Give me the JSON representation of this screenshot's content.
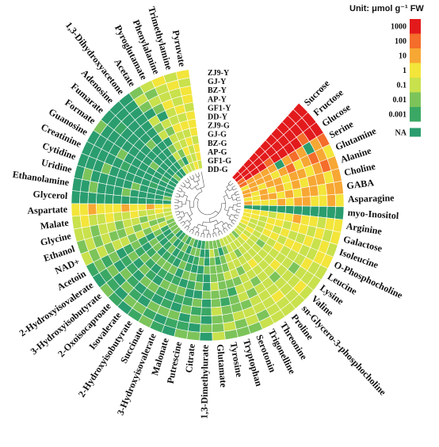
{
  "chart_data": {
    "type": "heatmap",
    "layout": "circular",
    "legend": {
      "title": "Unit: μmol g⁻¹ FW",
      "ticks": [
        "1000",
        "100",
        "10",
        "1",
        "0.1",
        "0.01",
        "0.001"
      ],
      "colors": [
        "#e31a1c",
        "#f46d2a",
        "#f7a733",
        "#f3e53a",
        "#c9e14c",
        "#7cc45a",
        "#3aa864"
      ],
      "na_label": "NA",
      "na_color": "#2a9d6e",
      "placement": "top-right"
    },
    "samples": [
      "ZJ9-Y",
      "GJ-Y",
      "BZ-Y",
      "AP-Y",
      "GF1-Y",
      "DD-Y",
      "ZJ9-G",
      "GJ-G",
      "BZ-G",
      "AP-G",
      "GF1-G",
      "DD-G"
    ],
    "metabolites": [
      "Sucrose",
      "Fructose",
      "Glucose",
      "Serine",
      "Glutamine",
      "Alanine",
      "Choline",
      "GABA",
      "Asparagine",
      "myo-Inositol",
      "Arginine",
      "Galactose",
      "Isoleucine",
      "O-Phosphocholine",
      "Leucine",
      "Lysine",
      "Valine",
      "sn-Glycero-3-phosphocholine",
      "Proline",
      "Threonine",
      "Trigonelline",
      "Serotonin",
      "Tryptophan",
      "Tyrosine",
      "Glutamate",
      "1,3-Dimethylurate",
      "Citrate",
      "Putrescine",
      "Malonate",
      "3-Hydroxyisovalerate",
      "Succinate",
      "2-Hydroxyisobutyrate",
      "Isovalerate",
      "2-Oxoisocaproate",
      "3-Hydroxyisobutyrate",
      "2-Hydroxyisovalerate",
      "Acetoin",
      "NAD+",
      "Ethanol",
      "Glycine",
      "Malate",
      "Aspartate",
      "Glycerol",
      "Ethanolamine",
      "Uridine",
      "Cytidine",
      "Creatinine",
      "Guanosine",
      "Formate",
      "Fumarate",
      "Adenosine",
      "1,3-Dihydroxyacetone",
      "Acetate",
      "Pyroglutamate",
      "Phenylalanine",
      "Trimethylamine",
      "Pyruvate"
    ],
    "levels_note": "level index: 0=1000,1=100,2=10,3=1,4=0.1,5=0.01,6=0.001,-1=NA; each row lists samples ZJ9-Y..DD-G",
    "levels": [
      [
        0,
        0,
        0,
        0,
        0,
        0,
        0,
        0,
        0,
        0,
        0,
        0
      ],
      [
        0,
        0,
        0,
        0,
        0,
        0,
        0,
        0,
        0,
        0,
        0,
        0
      ],
      [
        0,
        0,
        1,
        0,
        0,
        0,
        0,
        1,
        0,
        0,
        0,
        1
      ],
      [
        1,
        2,
        -1,
        2,
        1,
        2,
        -1,
        2,
        2,
        2,
        2,
        1
      ],
      [
        3,
        2,
        1,
        2,
        3,
        1,
        2,
        3,
        2,
        2,
        2,
        3
      ],
      [
        2,
        1,
        2,
        3,
        2,
        2,
        3,
        2,
        2,
        3,
        2,
        2
      ],
      [
        2,
        3,
        2,
        2,
        3,
        2,
        3,
        2,
        3,
        2,
        3,
        2
      ],
      [
        2,
        2,
        3,
        2,
        2,
        3,
        2,
        3,
        2,
        2,
        3,
        3
      ],
      [
        3,
        2,
        3,
        3,
        2,
        2,
        3,
        2,
        3,
        3,
        3,
        2
      ],
      [
        -1,
        -1,
        -1,
        -1,
        -1,
        -1,
        -1,
        -1,
        -1,
        -1,
        -1,
        -1
      ],
      [
        3,
        3,
        4,
        3,
        3,
        2,
        3,
        3,
        4,
        3,
        3,
        3
      ],
      [
        3,
        4,
        3,
        4,
        3,
        3,
        4,
        3,
        3,
        4,
        3,
        3
      ],
      [
        4,
        3,
        4,
        3,
        4,
        4,
        3,
        4,
        3,
        4,
        4,
        3
      ],
      [
        3,
        3,
        4,
        4,
        3,
        3,
        4,
        3,
        3,
        4,
        4,
        3
      ],
      [
        4,
        4,
        3,
        4,
        4,
        4,
        3,
        4,
        4,
        4,
        3,
        4
      ],
      [
        4,
        4,
        4,
        5,
        4,
        4,
        4,
        4,
        5,
        4,
        4,
        4
      ],
      [
        4,
        3,
        4,
        4,
        4,
        3,
        4,
        4,
        4,
        4,
        3,
        4
      ],
      [
        4,
        4,
        4,
        4,
        5,
        4,
        4,
        4,
        4,
        4,
        4,
        5
      ],
      [
        4,
        4,
        3,
        4,
        4,
        4,
        4,
        3,
        4,
        4,
        4,
        4
      ],
      [
        4,
        4,
        4,
        4,
        4,
        5,
        4,
        4,
        4,
        5,
        4,
        4
      ],
      [
        4,
        5,
        4,
        4,
        5,
        4,
        4,
        5,
        4,
        4,
        4,
        4
      ],
      [
        5,
        4,
        4,
        5,
        4,
        4,
        5,
        4,
        4,
        4,
        5,
        4
      ],
      [
        5,
        5,
        4,
        5,
        5,
        6,
        5,
        4,
        5,
        5,
        -1,
        5
      ],
      [
        5,
        4,
        5,
        5,
        6,
        5,
        5,
        5,
        5,
        6,
        5,
        5
      ],
      [
        4,
        5,
        5,
        4,
        5,
        5,
        4,
        5,
        5,
        5,
        4,
        5
      ],
      [
        -1,
        5,
        -1,
        6,
        -1,
        5,
        -1,
        -1,
        5,
        -1,
        -1,
        5
      ],
      [
        5,
        -1,
        5,
        6,
        5,
        -1,
        5,
        6,
        -1,
        5,
        -1,
        6
      ],
      [
        5,
        6,
        -1,
        5,
        6,
        -1,
        6,
        5,
        -1,
        6,
        5,
        -1
      ],
      [
        -1,
        6,
        5,
        -1,
        6,
        5,
        -1,
        5,
        6,
        -1,
        5,
        6
      ],
      [
        6,
        -1,
        5,
        6,
        -1,
        5,
        6,
        -1,
        5,
        6,
        -1,
        5
      ],
      [
        5,
        6,
        5,
        -1,
        6,
        5,
        6,
        5,
        -1,
        6,
        5,
        6
      ],
      [
        6,
        5,
        -1,
        6,
        5,
        -1,
        6,
        5,
        6,
        -1,
        6,
        5
      ],
      [
        -1,
        5,
        6,
        -1,
        5,
        6,
        -1,
        5,
        6,
        5,
        -1,
        6
      ],
      [
        6,
        -1,
        5,
        6,
        -1,
        5,
        6,
        5,
        -1,
        6,
        5,
        -1
      ],
      [
        5,
        6,
        -1,
        5,
        6,
        -1,
        5,
        6,
        5,
        -1,
        6,
        5
      ],
      [
        -1,
        6,
        5,
        -1,
        6,
        5,
        6,
        -1,
        5,
        6,
        -1,
        5
      ],
      [
        6,
        5,
        6,
        5,
        -1,
        6,
        5,
        6,
        -1,
        5,
        6,
        5
      ],
      [
        4,
        5,
        4,
        5,
        4,
        4,
        5,
        4,
        5,
        4,
        4,
        5
      ],
      [
        5,
        4,
        5,
        4,
        5,
        5,
        4,
        5,
        4,
        5,
        5,
        4
      ],
      [
        4,
        4,
        5,
        4,
        4,
        5,
        4,
        4,
        5,
        4,
        4,
        4
      ],
      [
        4,
        3,
        4,
        4,
        3,
        4,
        4,
        3,
        4,
        4,
        3,
        4
      ],
      [
        3,
        3,
        2,
        3,
        3,
        3,
        2,
        3,
        3,
        2,
        3,
        3
      ],
      [
        -1,
        -1,
        -1,
        -1,
        -1,
        -1,
        -1,
        -1,
        -1,
        -1,
        -1,
        -1
      ],
      [
        -1,
        -1,
        5,
        -1,
        -1,
        -1,
        5,
        -1,
        -1,
        -1,
        -1,
        5
      ],
      [
        -1,
        5,
        -1,
        -1,
        -1,
        -1,
        -1,
        5,
        -1,
        -1,
        -1,
        -1
      ],
      [
        -1,
        -1,
        -1,
        5,
        -1,
        -1,
        -1,
        -1,
        -1,
        6,
        -1,
        -1
      ],
      [
        -1,
        -1,
        -1,
        -1,
        -1,
        6,
        -1,
        -1,
        -1,
        -1,
        -1,
        -1
      ],
      [
        -1,
        -1,
        -1,
        -1,
        5,
        -1,
        -1,
        -1,
        -1,
        -1,
        6,
        -1
      ],
      [
        5,
        -1,
        -1,
        -1,
        -1,
        -1,
        -1,
        -1,
        5,
        -1,
        -1,
        -1
      ],
      [
        -1,
        -1,
        6,
        -1,
        -1,
        -1,
        -1,
        -1,
        -1,
        -1,
        -1,
        5
      ],
      [
        -1,
        -1,
        -1,
        -1,
        -1,
        -1,
        5,
        -1,
        -1,
        -1,
        -1,
        -1
      ],
      [
        -1,
        -1,
        -1,
        -1,
        -1,
        -1,
        -1,
        -1,
        -1,
        -1,
        -1,
        -1
      ],
      [
        5,
        4,
        5,
        -1,
        4,
        5,
        4,
        -1,
        5,
        4,
        5,
        4
      ],
      [
        4,
        5,
        4,
        5,
        -1,
        4,
        5,
        4,
        4,
        5,
        -1,
        4
      ],
      [
        3,
        4,
        4,
        3,
        4,
        4,
        3,
        4,
        4,
        3,
        4,
        4
      ],
      [
        4,
        3,
        4,
        4,
        3,
        4,
        3,
        4,
        3,
        4,
        4,
        3
      ],
      [
        3,
        4,
        3,
        3,
        4,
        3,
        3,
        3,
        4,
        3,
        3,
        4
      ]
    ]
  }
}
